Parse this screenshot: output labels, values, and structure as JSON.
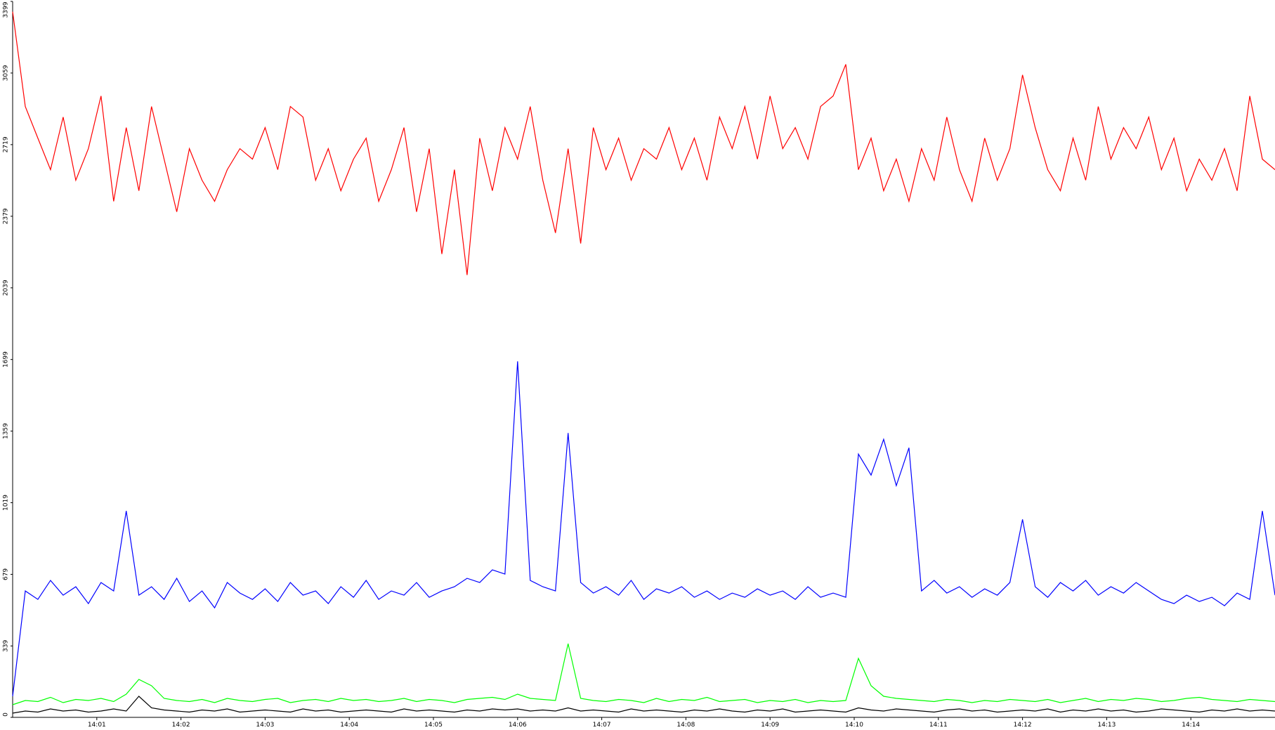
{
  "chart_data": {
    "type": "line",
    "x": [
      0,
      0.15,
      0.3,
      0.45,
      0.6,
      0.75,
      0.9,
      1.05,
      1.2,
      1.35,
      1.5,
      1.65,
      1.8,
      1.95,
      2.1,
      2.25,
      2.4,
      2.55,
      2.7,
      2.85,
      3,
      3.15,
      3.3,
      3.45,
      3.6,
      3.75,
      3.9,
      4.05,
      4.2,
      4.35,
      4.5,
      4.65,
      4.8,
      4.95,
      5.1,
      5.25,
      5.4,
      5.55,
      5.7,
      5.85,
      6,
      6.15,
      6.3,
      6.45,
      6.6,
      6.75,
      6.9,
      7.05,
      7.2,
      7.35,
      7.5,
      7.65,
      7.8,
      7.95,
      8.1,
      8.25,
      8.4,
      8.55,
      8.7,
      8.85,
      9,
      9.15,
      9.3,
      9.45,
      9.6,
      9.75,
      9.9,
      10.05,
      10.2,
      10.35,
      10.5,
      10.65,
      10.8,
      10.95,
      11.1,
      11.25,
      11.4,
      11.55,
      11.7,
      11.85,
      12,
      12.15,
      12.3,
      12.45,
      12.6,
      12.75,
      12.9,
      13.05,
      13.2,
      13.35,
      13.5,
      13.65,
      13.8,
      13.95,
      14.1,
      14.25,
      14.4,
      14.55,
      14.7,
      14.85,
      15
    ],
    "series": [
      {
        "color": "#ff0000",
        "values": [
          3350,
          2900,
          2750,
          2600,
          2850,
          2550,
          2700,
          2950,
          2450,
          2800,
          2500,
          2900,
          2650,
          2400,
          2700,
          2550,
          2450,
          2600,
          2700,
          2650,
          2800,
          2600,
          2900,
          2850,
          2550,
          2700,
          2500,
          2650,
          2750,
          2450,
          2600,
          2800,
          2400,
          2700,
          2200,
          2600,
          2100,
          2750,
          2500,
          2800,
          2650,
          2900,
          2550,
          2300,
          2700,
          2250,
          2800,
          2600,
          2750,
          2550,
          2700,
          2650,
          2800,
          2600,
          2750,
          2550,
          2850,
          2700,
          2900,
          2650,
          2950,
          2700,
          2800,
          2650,
          2900,
          2950,
          3100,
          2600,
          2750,
          2500,
          2650,
          2450,
          2700,
          2550,
          2850,
          2600,
          2450,
          2750,
          2550,
          2700,
          3050,
          2800,
          2600,
          2500,
          2750,
          2550,
          2900,
          2650,
          2800,
          2700,
          2850,
          2600,
          2750,
          2500,
          2650,
          2550,
          2700,
          2500,
          2950,
          2650,
          2600
        ]
      },
      {
        "color": "#0000ff",
        "values": [
          100,
          600,
          560,
          650,
          580,
          620,
          540,
          640,
          600,
          980,
          580,
          620,
          560,
          660,
          550,
          600,
          520,
          640,
          590,
          560,
          610,
          550,
          640,
          580,
          600,
          540,
          620,
          570,
          650,
          560,
          600,
          580,
          640,
          570,
          600,
          620,
          660,
          640,
          700,
          680,
          1690,
          650,
          620,
          600,
          1350,
          640,
          590,
          620,
          580,
          650,
          560,
          610,
          590,
          620,
          570,
          600,
          560,
          590,
          570,
          610,
          580,
          600,
          560,
          620,
          570,
          590,
          570,
          1250,
          1150,
          1320,
          1100,
          1280,
          600,
          650,
          590,
          620,
          570,
          610,
          580,
          640,
          940,
          620,
          570,
          640,
          600,
          650,
          580,
          620,
          590,
          640,
          600,
          560,
          540,
          580,
          550,
          570,
          530,
          590,
          560,
          980,
          580
        ]
      },
      {
        "color": "#00ff00",
        "values": [
          60,
          80,
          75,
          95,
          70,
          85,
          80,
          90,
          75,
          110,
          180,
          150,
          90,
          80,
          75,
          85,
          70,
          90,
          80,
          75,
          85,
          90,
          70,
          80,
          85,
          75,
          90,
          80,
          85,
          75,
          80,
          90,
          75,
          85,
          80,
          70,
          85,
          90,
          95,
          85,
          110,
          90,
          85,
          80,
          350,
          90,
          80,
          75,
          85,
          80,
          70,
          90,
          75,
          85,
          80,
          95,
          75,
          80,
          85,
          70,
          80,
          75,
          85,
          70,
          80,
          75,
          80,
          280,
          150,
          100,
          90,
          85,
          80,
          75,
          85,
          80,
          70,
          80,
          75,
          85,
          80,
          75,
          85,
          70,
          80,
          90,
          75,
          85,
          80,
          90,
          85,
          75,
          80,
          90,
          95,
          85,
          80,
          75,
          85,
          80,
          75
        ]
      },
      {
        "color": "#000000",
        "values": [
          20,
          30,
          25,
          40,
          30,
          35,
          25,
          30,
          40,
          30,
          100,
          45,
          35,
          30,
          25,
          35,
          30,
          40,
          25,
          30,
          35,
          30,
          25,
          40,
          30,
          35,
          25,
          30,
          35,
          30,
          25,
          40,
          30,
          35,
          30,
          25,
          35,
          30,
          40,
          35,
          40,
          30,
          35,
          30,
          45,
          30,
          35,
          30,
          25,
          40,
          30,
          35,
          30,
          25,
          35,
          30,
          40,
          30,
          25,
          35,
          30,
          40,
          25,
          30,
          35,
          30,
          25,
          45,
          35,
          30,
          40,
          35,
          30,
          25,
          35,
          40,
          30,
          35,
          25,
          30,
          35,
          30,
          40,
          25,
          35,
          30,
          40,
          30,
          35,
          25,
          30,
          40,
          35,
          30,
          25,
          35,
          30,
          40,
          30,
          35,
          30
        ]
      }
    ],
    "xlim": [
      0,
      15
    ],
    "xticks": [
      {
        "value": 1,
        "label": "14:01"
      },
      {
        "value": 2,
        "label": "14:02"
      },
      {
        "value": 3,
        "label": "14:03"
      },
      {
        "value": 4,
        "label": "14:04"
      },
      {
        "value": 5,
        "label": "14:05"
      },
      {
        "value": 6,
        "label": "14:06"
      },
      {
        "value": 7,
        "label": "14:07"
      },
      {
        "value": 8,
        "label": "14:08"
      },
      {
        "value": 9,
        "label": "14:09"
      },
      {
        "value": 10,
        "label": "14:10"
      },
      {
        "value": 11,
        "label": "14:11"
      },
      {
        "value": 12,
        "label": "14:12"
      },
      {
        "value": 13,
        "label": "14:13"
      },
      {
        "value": 14,
        "label": "14:14"
      }
    ],
    "ylim": [
      0,
      3399
    ],
    "yticks": [
      0,
      339,
      679,
      1019,
      1359,
      1699,
      2039,
      2379,
      2719,
      3059,
      3399
    ],
    "grid": false
  }
}
